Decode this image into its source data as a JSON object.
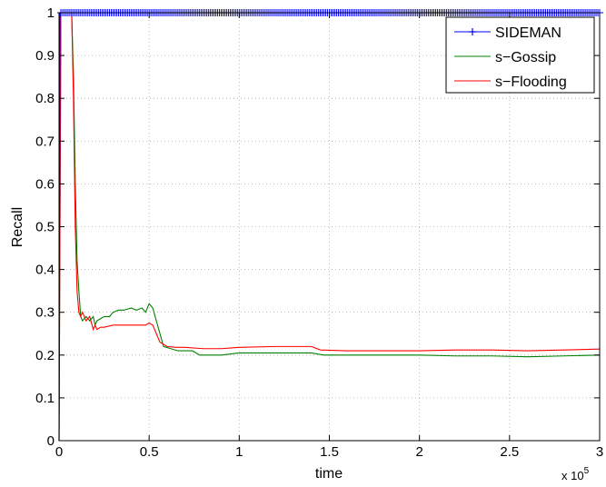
{
  "chart_data": {
    "type": "line",
    "title": "",
    "xlabel": "time",
    "ylabel": "Recall",
    "x_exponent_label": {
      "base": "x 10",
      "exponent": "5"
    },
    "xlim": [
      0,
      300000
    ],
    "ylim": [
      0,
      1
    ],
    "grid": true,
    "legend_position": "top-right",
    "xticks": [
      {
        "value": 0,
        "label": "0"
      },
      {
        "value": 50000,
        "label": "0.5"
      },
      {
        "value": 100000,
        "label": "1"
      },
      {
        "value": 150000,
        "label": "1.5"
      },
      {
        "value": 200000,
        "label": "2"
      },
      {
        "value": 250000,
        "label": "2.5"
      },
      {
        "value": 300000,
        "label": "3"
      }
    ],
    "yticks": [
      {
        "value": 0,
        "label": "0"
      },
      {
        "value": 0.1,
        "label": "0.1"
      },
      {
        "value": 0.2,
        "label": "0.2"
      },
      {
        "value": 0.3,
        "label": "0.3"
      },
      {
        "value": 0.4,
        "label": "0.4"
      },
      {
        "value": 0.5,
        "label": "0.5"
      },
      {
        "value": 0.6,
        "label": "0.6"
      },
      {
        "value": 0.7,
        "label": "0.7"
      },
      {
        "value": 0.8,
        "label": "0.8"
      },
      {
        "value": 0.9,
        "label": "0.9"
      },
      {
        "value": 1,
        "label": "1"
      }
    ],
    "series": [
      {
        "name": "SIDEMAN",
        "color": "#0000ff",
        "marker": "plus",
        "marker_spacing": 1000,
        "x": [
          0,
          500,
          300000
        ],
        "y": [
          0,
          1,
          1
        ]
      },
      {
        "name": "s−Gossip",
        "color": "#008000",
        "marker": "none",
        "x": [
          0,
          1000,
          3000,
          5000,
          7000,
          8000,
          9000,
          10000,
          11000,
          12000,
          13000,
          15000,
          17000,
          19000,
          20000,
          21000,
          23000,
          25000,
          28000,
          30000,
          33000,
          36000,
          40000,
          43000,
          46000,
          48000,
          50000,
          52000,
          54000,
          56000,
          58000,
          62000,
          66000,
          70000,
          74000,
          78000,
          82000,
          90000,
          100000,
          120000,
          140000,
          147000,
          160000,
          180000,
          200000,
          220000,
          240000,
          260000,
          280000,
          300000
        ],
        "y": [
          0,
          1,
          1,
          1,
          1,
          0.85,
          0.6,
          0.42,
          0.35,
          0.29,
          0.28,
          0.29,
          0.28,
          0.29,
          0.27,
          0.28,
          0.285,
          0.29,
          0.29,
          0.3,
          0.305,
          0.305,
          0.31,
          0.305,
          0.31,
          0.3,
          0.32,
          0.31,
          0.28,
          0.25,
          0.22,
          0.215,
          0.21,
          0.21,
          0.21,
          0.2,
          0.2,
          0.2,
          0.205,
          0.205,
          0.205,
          0.2,
          0.2,
          0.2,
          0.2,
          0.198,
          0.198,
          0.196,
          0.198,
          0.2
        ]
      },
      {
        "name": "s−Flooding",
        "color": "#ff0000",
        "marker": "none",
        "x": [
          0,
          1000,
          3000,
          5000,
          7000,
          8000,
          9000,
          10000,
          11000,
          12000,
          13000,
          15000,
          17000,
          19000,
          20000,
          21000,
          23000,
          25000,
          30000,
          35000,
          40000,
          45000,
          48000,
          50000,
          52000,
          54000,
          56000,
          60000,
          65000,
          70000,
          80000,
          90000,
          100000,
          120000,
          140000,
          145000,
          160000,
          180000,
          200000,
          220000,
          240000,
          260000,
          280000,
          300000
        ],
        "y": [
          0,
          1,
          1,
          1,
          1,
          0.8,
          0.5,
          0.35,
          0.3,
          0.29,
          0.3,
          0.28,
          0.29,
          0.26,
          0.27,
          0.26,
          0.265,
          0.265,
          0.27,
          0.27,
          0.27,
          0.27,
          0.27,
          0.275,
          0.27,
          0.25,
          0.23,
          0.22,
          0.218,
          0.218,
          0.215,
          0.215,
          0.218,
          0.22,
          0.22,
          0.212,
          0.21,
          0.21,
          0.21,
          0.212,
          0.212,
          0.21,
          0.212,
          0.214
        ]
      }
    ]
  }
}
